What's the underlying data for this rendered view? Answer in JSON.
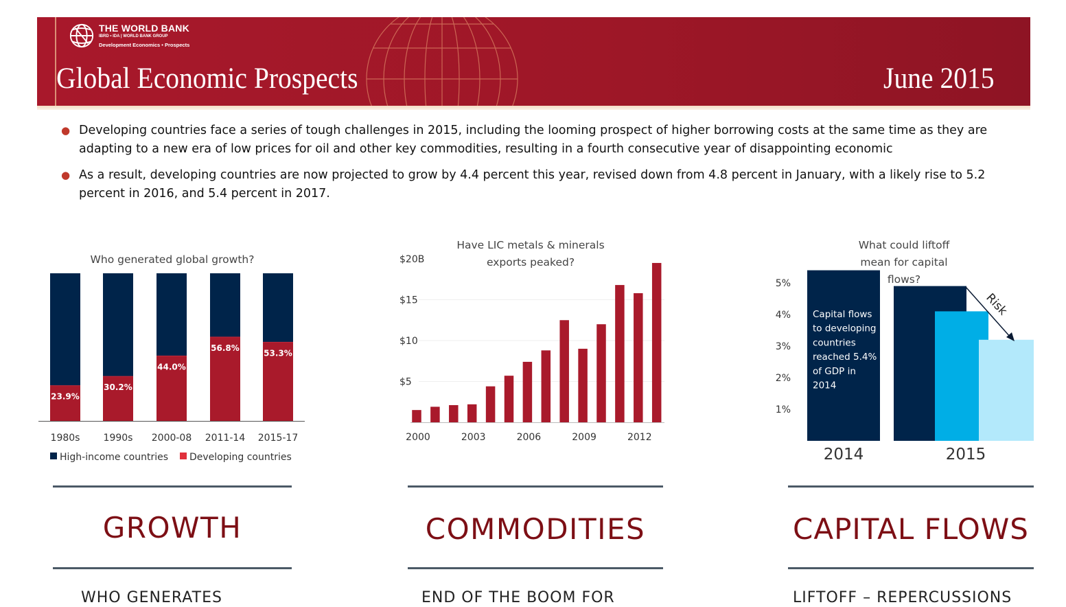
{
  "banner": {
    "logo": {
      "main": "THE WORLD BANK",
      "sub": "IBRD • IDA | WORLD BANK GROUP",
      "dept": "Development Economics • Prospects"
    },
    "title": "Global Economic Prospects",
    "date": "June 2015"
  },
  "bullets": [
    "Developing countries face a series of tough challenges in 2015, including the looming prospect of higher borrowing costs at the same time as they are adapting to a new era of low prices for oil and other key commodities, resulting in a fourth consecutive year of disappointing economic",
    "As a result, developing countries are now projected to grow by 4.4 percent this year, revised down from 4.8 percent in January, with a likely rise to 5.2 percent in 2016, and 5.4 percent in 2017."
  ],
  "colors": {
    "brand_red": "#a8182b",
    "navy": "#00244a",
    "bar_red": "#a91a2b",
    "legend_red": "#e0303c",
    "blue": "#00aee6",
    "light_blue": "#b3e9fb",
    "section_red": "#7d0f15"
  },
  "sections": [
    {
      "heading": "GROWTH",
      "sub": "WHO GENERATES"
    },
    {
      "heading": "COMMODITIES",
      "sub": "END OF THE BOOM FOR"
    },
    {
      "heading": "CAPITAL FLOWS",
      "sub": "LIFTOFF – REPERCUSSIONS"
    }
  ],
  "chart_data": [
    {
      "type": "bar",
      "stacked": true,
      "percent": true,
      "title": "Who generated global growth?",
      "categories": [
        "1980s",
        "1990s",
        "2000-08",
        "2011-14",
        "2015-17"
      ],
      "series": [
        {
          "name": "High-income countries",
          "values": [
            76.1,
            69.8,
            56.0,
            43.2,
            46.7
          ],
          "color": "#00244a"
        },
        {
          "name": "Developing countries",
          "values": [
            23.9,
            30.2,
            44.0,
            56.8,
            53.3
          ],
          "color": "#a91a2b",
          "labels": [
            "23.9%",
            "30.2%",
            "44.0%",
            "56.8%",
            "53.3%"
          ]
        }
      ],
      "legend": "bottom"
    },
    {
      "type": "bar",
      "title": "Have LIC metals & minerals exports peaked?",
      "x": [
        2000,
        2001,
        2002,
        2003,
        2004,
        2005,
        2006,
        2007,
        2008,
        2009,
        2010,
        2011,
        2012,
        2013
      ],
      "values": [
        1.5,
        1.9,
        2.1,
        2.2,
        4.4,
        5.7,
        7.4,
        8.8,
        12.5,
        9.0,
        12.0,
        16.8,
        15.8,
        19.5
      ],
      "xticks": [
        "2000",
        "2003",
        "2006",
        "2009",
        "2012"
      ],
      "yticks": [
        "$5",
        "$10",
        "$15",
        "$20B"
      ],
      "ylim": [
        0,
        20
      ],
      "color": "#a91a2b"
    },
    {
      "type": "bar",
      "title": "What could liftoff mean for capital flows?",
      "categories": [
        "2014",
        "2015"
      ],
      "yticks": [
        "1%",
        "2%",
        "3%",
        "4%",
        "5%"
      ],
      "ylim": [
        0,
        5.8
      ],
      "series": [
        {
          "category": "2014",
          "value": 5.4,
          "color": "#00244a"
        },
        {
          "category": "2015",
          "value": 4.9,
          "color": "#00244a"
        },
        {
          "category": "2015",
          "value": 4.1,
          "color": "#00aee6"
        },
        {
          "category": "2015",
          "value": 3.2,
          "color": "#b3e9fb"
        }
      ],
      "annotation": "Capital flows to developing countries reached 5.4% of GDP in 2014",
      "annotation_lines": [
        "Capital flows",
        "to developing",
        "countries",
        "reached 5.4%",
        "of GDP in",
        "2014"
      ],
      "arrow_label": "Risk"
    }
  ]
}
